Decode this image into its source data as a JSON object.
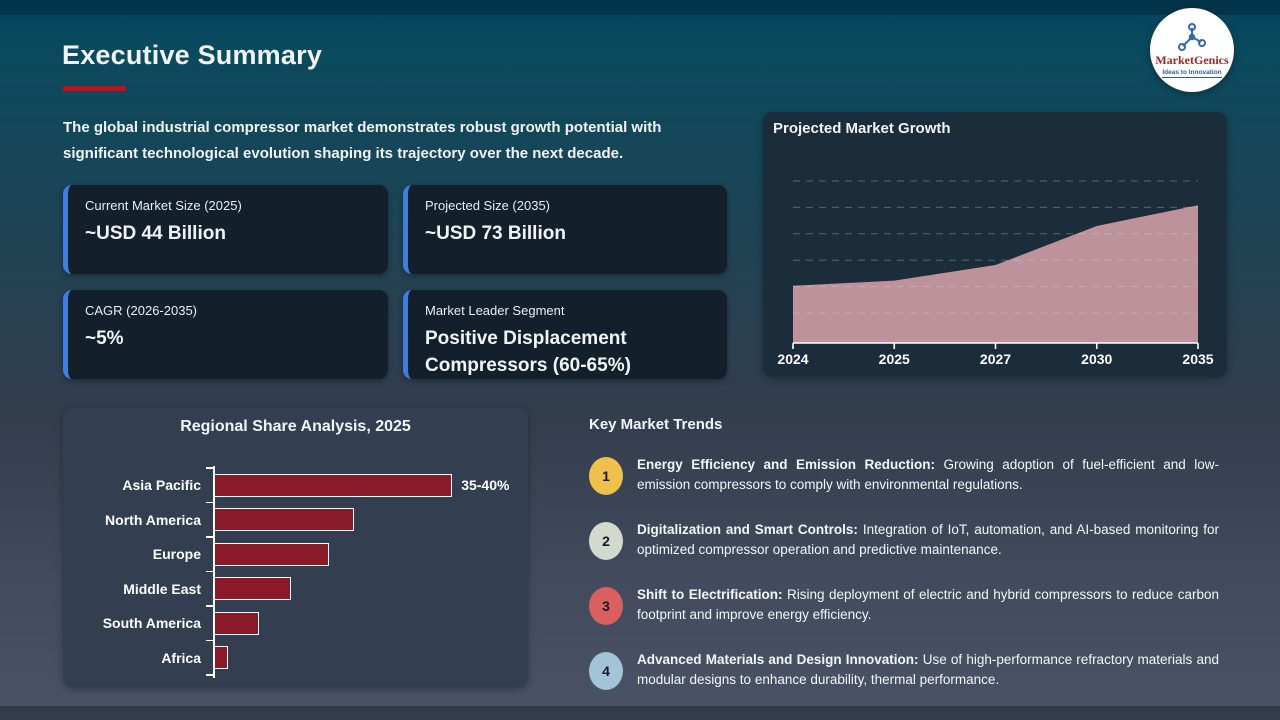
{
  "slide": {
    "title": "Executive Summary",
    "intro": "The global industrial compressor market demonstrates robust growth potential with significant technological evolution shaping its trajectory over the next decade."
  },
  "logo": {
    "name": "MarketGenics",
    "tagline": "Ideas to Innovation"
  },
  "stats": [
    {
      "label": "Current Market Size (2025)",
      "value": "~USD 44 Billion"
    },
    {
      "label": "Projected Size (2035)",
      "value": "~USD 73 Billion"
    },
    {
      "label": "CAGR (2026-2035)",
      "value": "~5%"
    },
    {
      "label": "Market Leader Segment",
      "value": "Positive Displacement Compressors (60-65%)"
    }
  ],
  "chart_data": [
    {
      "type": "area",
      "title": "Projected Market Growth",
      "x": [
        "2024",
        "2025",
        "2027",
        "2030",
        "2035"
      ],
      "values": [
        42,
        44,
        50,
        65,
        73
      ],
      "unit": "USD Billion",
      "ylim": [
        20,
        90
      ],
      "grid": "dashed-horizontal",
      "area_color": "#bd929b",
      "axis_color": "#ffffff"
    },
    {
      "type": "bar",
      "title": "Regional Share Analysis, 2025",
      "orientation": "horizontal",
      "categories": [
        "Asia Pacific",
        "North America",
        "Europe",
        "Middle East",
        "South America",
        "Africa"
      ],
      "values": [
        37.5,
        22,
        18,
        12,
        7,
        2
      ],
      "value_labels": [
        "35-40%",
        "",
        "",
        "",
        "",
        ""
      ],
      "xlim": [
        0,
        40
      ],
      "bar_color": "#8a1a28",
      "grid": "off"
    }
  ],
  "trends": {
    "title": "Key Market Trends",
    "items": [
      {
        "num": "1",
        "color": "#efc04b",
        "lead": "Energy Efficiency and Emission Reduction:",
        "desc": "Growing adoption of fuel-efficient and low-emission compressors to comply with environmental regulations."
      },
      {
        "num": "2",
        "color": "#d3d9cd",
        "lead": "Digitalization and Smart Controls:",
        "desc": "Integration of IoT, automation, and AI-based monitoring for optimized compressor operation and predictive maintenance."
      },
      {
        "num": "3",
        "color": "#d9605e",
        "lead": "Shift to Electrification:",
        "desc": "Rising deployment of electric and hybrid compressors to reduce carbon footprint and improve energy efficiency."
      },
      {
        "num": "4",
        "color": "#a3c3d9",
        "lead": "Advanced Materials and Design Innovation:",
        "desc": "Use of high-performance refractory materials and modular designs to enhance durability, thermal performance."
      }
    ]
  },
  "colors": {
    "accent_red": "#c0111e",
    "card_accent_blue": "#3f7edd",
    "area_fill": "#bd929b",
    "bar_fill": "#8a1a28"
  }
}
